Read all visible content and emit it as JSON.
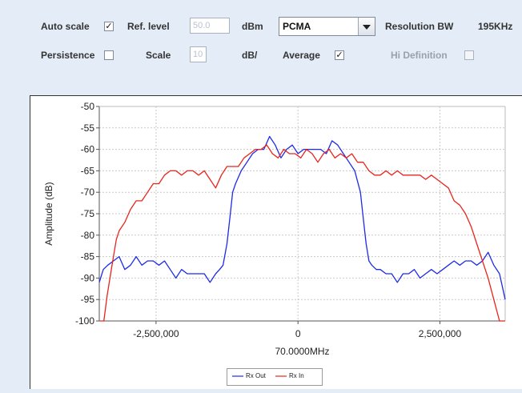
{
  "controls": {
    "auto_scale_label": "Auto scale",
    "auto_scale_checked": true,
    "ref_level_label": "Ref. level",
    "ref_level_value": "50.0",
    "ref_level_unit": "dBm",
    "mode_selected": "PCMA",
    "resolution_bw_label": "Resolution BW",
    "resolution_bw_value": "195KHz",
    "persistence_label": "Persistence",
    "persistence_checked": false,
    "scale_label": "Scale",
    "scale_value": "10",
    "scale_unit": "dB/",
    "average_label": "Average",
    "average_checked": true,
    "hi_definition_label": "Hi Definition",
    "hi_definition_checked": false,
    "check_glyph": "✓"
  },
  "chart_data": {
    "type": "line",
    "xlabel": "70.0000MHz",
    "ylabel": "Amplitude (dB)",
    "xlim": [
      -3500000,
      3650000
    ],
    "ylim": [
      -100,
      -50
    ],
    "x_ticks": [
      -2500000,
      0,
      2500000
    ],
    "x_tick_labels": [
      "-2,500,000",
      "0",
      "2,500,000"
    ],
    "y_ticks": [
      -50,
      -55,
      -60,
      -65,
      -70,
      -75,
      -80,
      -85,
      -90,
      -95,
      -100
    ],
    "grid": true,
    "legend_position": "bottom-center",
    "series": [
      {
        "name": "Rx Out",
        "color": "#1d2be8",
        "x": [
          -3500000,
          -3430000,
          -3350000,
          -3250000,
          -3150000,
          -3050000,
          -2950000,
          -2850000,
          -2750000,
          -2650000,
          -2550000,
          -2450000,
          -2350000,
          -2250000,
          -2150000,
          -2050000,
          -1950000,
          -1850000,
          -1750000,
          -1650000,
          -1550000,
          -1450000,
          -1380000,
          -1320000,
          -1250000,
          -1200000,
          -1150000,
          -1100000,
          -1000000,
          -900000,
          -800000,
          -700000,
          -600000,
          -500000,
          -400000,
          -300000,
          -200000,
          -100000,
          0,
          100000,
          200000,
          300000,
          400000,
          500000,
          600000,
          700000,
          800000,
          900000,
          1000000,
          1100000,
          1150000,
          1200000,
          1250000,
          1300000,
          1380000,
          1450000,
          1550000,
          1650000,
          1750000,
          1850000,
          1950000,
          2050000,
          2150000,
          2250000,
          2350000,
          2450000,
          2550000,
          2650000,
          2750000,
          2850000,
          2950000,
          3050000,
          3150000,
          3250000,
          3350000,
          3450000,
          3550000,
          3650000
        ],
        "y": [
          -91,
          -88,
          -87,
          -86,
          -85,
          -88,
          -87,
          -85,
          -87,
          -86,
          -86,
          -87,
          -86,
          -88,
          -90,
          -88,
          -89,
          -89,
          -89,
          -89,
          -91,
          -89,
          -88,
          -87,
          -82,
          -76,
          -70,
          -68,
          -65,
          -63,
          -61,
          -60,
          -60,
          -57,
          -59,
          -62,
          -60,
          -59,
          -61,
          -60,
          -60,
          -60,
          -60,
          -61,
          -58,
          -59,
          -61,
          -63,
          -65,
          -70,
          -76,
          -82,
          -86,
          -87,
          -88,
          -88,
          -89,
          -89,
          -91,
          -89,
          -89,
          -88,
          -90,
          -89,
          -88,
          -89,
          -88,
          -87,
          -86,
          -87,
          -86,
          -86,
          -87,
          -86,
          -84,
          -87,
          -89,
          -95
        ]
      },
      {
        "name": "Rx In",
        "color": "#e8241c",
        "x": [
          -3480000,
          -3420000,
          -3360000,
          -3300000,
          -3250000,
          -3200000,
          -3150000,
          -3050000,
          -2950000,
          -2850000,
          -2750000,
          -2650000,
          -2550000,
          -2450000,
          -2350000,
          -2250000,
          -2150000,
          -2050000,
          -1950000,
          -1850000,
          -1750000,
          -1650000,
          -1550000,
          -1450000,
          -1350000,
          -1250000,
          -1150000,
          -1050000,
          -950000,
          -850000,
          -750000,
          -650000,
          -550000,
          -450000,
          -350000,
          -250000,
          -150000,
          -50000,
          50000,
          150000,
          250000,
          350000,
          450000,
          550000,
          650000,
          750000,
          850000,
          950000,
          1050000,
          1150000,
          1250000,
          1350000,
          1450000,
          1550000,
          1650000,
          1750000,
          1850000,
          1950000,
          2050000,
          2150000,
          2250000,
          2350000,
          2450000,
          2550000,
          2650000,
          2750000,
          2850000,
          2950000,
          3050000,
          3150000,
          3250000,
          3350000,
          3450000,
          3550000,
          3650000
        ],
        "y": [
          -100,
          -100,
          -94,
          -89,
          -85,
          -81,
          -79,
          -77,
          -74,
          -72,
          -72,
          -70,
          -68,
          -68,
          -66,
          -65,
          -65,
          -66,
          -65,
          -65,
          -66,
          -65,
          -67,
          -69,
          -66,
          -64,
          -64,
          -64,
          -62,
          -61,
          -60,
          -60,
          -59,
          -61,
          -62,
          -60,
          -61,
          -61,
          -62,
          -60,
          -61,
          -63,
          -61,
          -60,
          -62,
          -61,
          -62,
          -61,
          -63,
          -63,
          -65,
          -66,
          -66,
          -65,
          -66,
          -65,
          -66,
          -66,
          -66,
          -66,
          -67,
          -66,
          -67,
          -68,
          -69,
          -72,
          -73,
          -75,
          -78,
          -82,
          -86,
          -90,
          -95,
          -100,
          -100
        ]
      }
    ]
  }
}
